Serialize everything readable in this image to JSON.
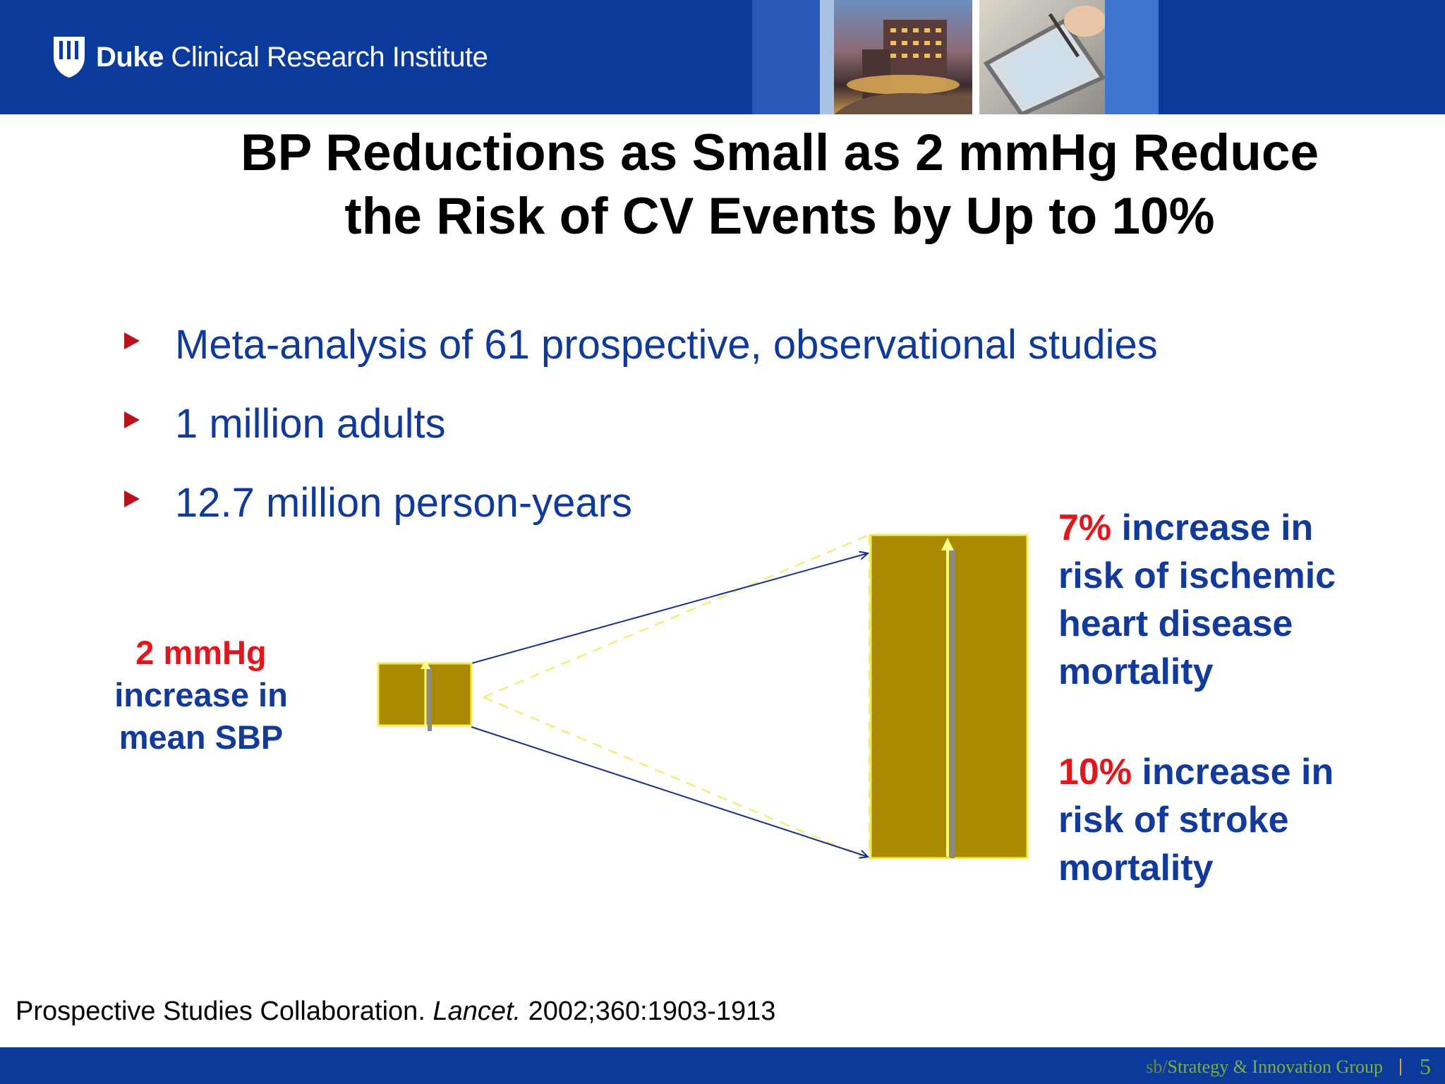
{
  "header": {
    "logo_bold": "Duke",
    "logo_rest": " Clinical Research Institute",
    "background_color": "#0a3b9c"
  },
  "title": {
    "line1": "BP Reductions as Small as 2 mmHg Reduce",
    "line2": "the Risk of CV Events by Up to 10%"
  },
  "bullets": [
    {
      "text": "Meta-analysis of 61 prospective, observational studies"
    },
    {
      "text": "1 million adults"
    },
    {
      "text": "12.7 million person-years"
    }
  ],
  "diagram": {
    "left_label": {
      "highlight": "2 mmHg",
      "line2": "increase in",
      "line3": "mean SBP"
    },
    "box_color": "#a98a00",
    "right_label_1": {
      "highlight": "7%",
      "rest1": " increase in",
      "line2": "risk of ischemic",
      "line3": "heart disease",
      "line4": "mortality"
    },
    "right_label_2": {
      "highlight": "10%",
      "rest1": " increase in",
      "line2": "risk of stroke",
      "line3": "mortality"
    }
  },
  "citation": {
    "before": "Prospective Studies Collaboration. ",
    "journal": "Lancet.",
    "after": " 2002;360:1903-1913"
  },
  "footer": {
    "prefix": "sb/",
    "group": "Strategy & Innovation Group",
    "page_number": "5"
  }
}
